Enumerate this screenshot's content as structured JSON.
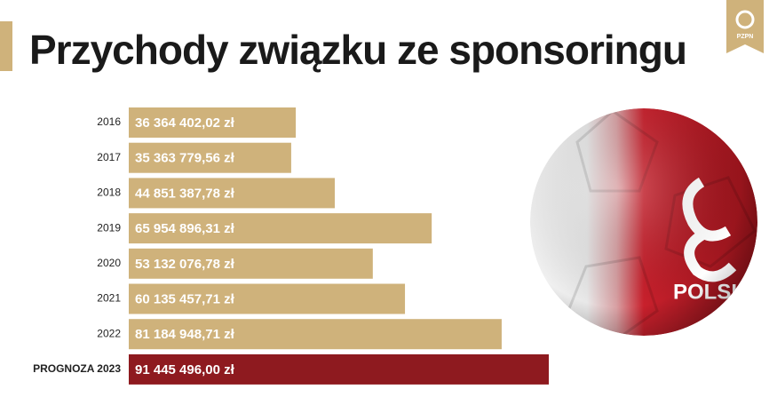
{
  "logo": "PZPN",
  "ball_text": "POLSKA",
  "chart_data": {
    "type": "bar",
    "orientation": "horizontal",
    "title": "Przychody związku ze sponsoringu",
    "categories": [
      "2016",
      "2017",
      "2018",
      "2019",
      "2020",
      "2021",
      "2022",
      "PROGNOZA 2023"
    ],
    "values": [
      36364402.02,
      35363779.56,
      44851387.78,
      65954896.31,
      53132076.78,
      60135457.71,
      81184948.71,
      91445496.0
    ],
    "value_labels": [
      "36 364 402,02 zł",
      "35 363 779,56 zł",
      "44 851 387,78 zł",
      "65 954 896,31 zł",
      "53 132 076,78 zł",
      "60 135 457,71 zł",
      "81 184 948,71 zł",
      "91 445 496,00 zł"
    ],
    "colors": [
      "#cfb27b",
      "#cfb27b",
      "#cfb27b",
      "#cfb27b",
      "#cfb27b",
      "#cfb27b",
      "#cfb27b",
      "#8e1a1f"
    ]
  }
}
